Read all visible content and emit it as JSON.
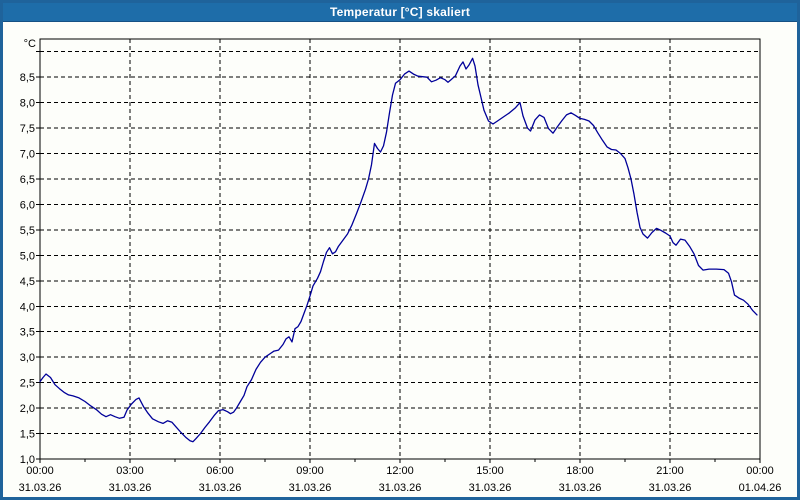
{
  "window": {
    "title": "Temperatur [°C] skaliert",
    "colors": {
      "title_bar": "#1e6da9",
      "title_text": "#ffffff",
      "frame": "#1f639b",
      "content_bg": "#fdfefa",
      "plot_border": "#000000",
      "grid": "#000000",
      "series": "#000099",
      "label": "#000000"
    }
  },
  "chart_data": {
    "type": "line",
    "title": "Temperatur [°C] skaliert",
    "unit_label": "°C",
    "legend_position": "none",
    "grid_on": true,
    "xlim_hours": [
      0,
      24
    ],
    "ylim": [
      1.0,
      9.25
    ],
    "y_grid_step": 0.5,
    "y_grid_top_line": 9.0,
    "x_grid_step_hours": 3,
    "x_minor_tick_hours": 1.5,
    "y_ticks": [
      {
        "value": 1.0,
        "label": "1,0"
      },
      {
        "value": 1.5,
        "label": "1,5"
      },
      {
        "value": 2.0,
        "label": "2,0"
      },
      {
        "value": 2.5,
        "label": "2,5"
      },
      {
        "value": 3.0,
        "label": "3,0"
      },
      {
        "value": 3.5,
        "label": "3,5"
      },
      {
        "value": 4.0,
        "label": "4,0"
      },
      {
        "value": 4.5,
        "label": "4,5"
      },
      {
        "value": 5.0,
        "label": "5,0"
      },
      {
        "value": 5.5,
        "label": "5,5"
      },
      {
        "value": 6.0,
        "label": "6,0"
      },
      {
        "value": 6.5,
        "label": "6,5"
      },
      {
        "value": 7.0,
        "label": "7,0"
      },
      {
        "value": 7.5,
        "label": "7,5"
      },
      {
        "value": 8.0,
        "label": "8,0"
      },
      {
        "value": 8.5,
        "label": "8,5"
      }
    ],
    "x_ticks": [
      {
        "hour": 0,
        "time": "00:00",
        "date": "31.03.26"
      },
      {
        "hour": 3,
        "time": "03:00",
        "date": "31.03.26"
      },
      {
        "hour": 6,
        "time": "06:00",
        "date": "31.03.26"
      },
      {
        "hour": 9,
        "time": "09:00",
        "date": "31.03.26"
      },
      {
        "hour": 12,
        "time": "12:00",
        "date": "31.03.26"
      },
      {
        "hour": 15,
        "time": "15:00",
        "date": "31.03.26"
      },
      {
        "hour": 18,
        "time": "18:00",
        "date": "31.03.26"
      },
      {
        "hour": 21,
        "time": "21:00",
        "date": "31.03.26"
      },
      {
        "hour": 24,
        "time": "00:00",
        "date": "01.04.26"
      }
    ],
    "series": [
      {
        "name": "Temperatur [°C]",
        "color": "#000099",
        "points": [
          [
            0,
            2.52
          ],
          [
            0.1,
            2.6
          ],
          [
            0.2,
            2.67
          ],
          [
            0.35,
            2.6
          ],
          [
            0.5,
            2.46
          ],
          [
            0.65,
            2.38
          ],
          [
            0.8,
            2.31
          ],
          [
            0.95,
            2.26
          ],
          [
            1.1,
            2.24
          ],
          [
            1.3,
            2.2
          ],
          [
            1.5,
            2.13
          ],
          [
            1.7,
            2.04
          ],
          [
            1.9,
            1.96
          ],
          [
            2.05,
            1.88
          ],
          [
            2.2,
            1.83
          ],
          [
            2.35,
            1.87
          ],
          [
            2.5,
            1.83
          ],
          [
            2.65,
            1.8
          ],
          [
            2.8,
            1.82
          ],
          [
            2.9,
            1.96
          ],
          [
            3.05,
            2.08
          ],
          [
            3.2,
            2.17
          ],
          [
            3.3,
            2.2
          ],
          [
            3.45,
            2.03
          ],
          [
            3.6,
            1.9
          ],
          [
            3.75,
            1.79
          ],
          [
            3.95,
            1.73
          ],
          [
            4.1,
            1.7
          ],
          [
            4.25,
            1.75
          ],
          [
            4.4,
            1.72
          ],
          [
            4.55,
            1.62
          ],
          [
            4.7,
            1.52
          ],
          [
            4.85,
            1.43
          ],
          [
            5,
            1.36
          ],
          [
            5.1,
            1.34
          ],
          [
            5.2,
            1.4
          ],
          [
            5.35,
            1.5
          ],
          [
            5.5,
            1.62
          ],
          [
            5.65,
            1.73
          ],
          [
            5.8,
            1.85
          ],
          [
            5.95,
            1.95
          ],
          [
            6.1,
            1.97
          ],
          [
            6.25,
            1.93
          ],
          [
            6.35,
            1.89
          ],
          [
            6.45,
            1.92
          ],
          [
            6.55,
            2.0
          ],
          [
            6.65,
            2.1
          ],
          [
            6.8,
            2.25
          ],
          [
            6.9,
            2.42
          ],
          [
            7.05,
            2.56
          ],
          [
            7.2,
            2.76
          ],
          [
            7.35,
            2.9
          ],
          [
            7.5,
            3.0
          ],
          [
            7.65,
            3.06
          ],
          [
            7.8,
            3.12
          ],
          [
            7.95,
            3.14
          ],
          [
            8.1,
            3.25
          ],
          [
            8.2,
            3.36
          ],
          [
            8.3,
            3.4
          ],
          [
            8.4,
            3.3
          ],
          [
            8.5,
            3.56
          ],
          [
            8.6,
            3.6
          ],
          [
            8.7,
            3.7
          ],
          [
            8.8,
            3.86
          ],
          [
            8.9,
            4.02
          ],
          [
            9,
            4.2
          ],
          [
            9.1,
            4.4
          ],
          [
            9.25,
            4.55
          ],
          [
            9.35,
            4.68
          ],
          [
            9.45,
            4.88
          ],
          [
            9.55,
            5.06
          ],
          [
            9.65,
            5.15
          ],
          [
            9.75,
            5.03
          ],
          [
            9.85,
            5.07
          ],
          [
            9.95,
            5.18
          ],
          [
            10.1,
            5.3
          ],
          [
            10.25,
            5.42
          ],
          [
            10.4,
            5.6
          ],
          [
            10.55,
            5.82
          ],
          [
            10.7,
            6.05
          ],
          [
            10.85,
            6.3
          ],
          [
            10.95,
            6.5
          ],
          [
            11.05,
            6.78
          ],
          [
            11.15,
            7.2
          ],
          [
            11.25,
            7.1
          ],
          [
            11.35,
            7.03
          ],
          [
            11.45,
            7.15
          ],
          [
            11.55,
            7.42
          ],
          [
            11.65,
            7.8
          ],
          [
            11.75,
            8.15
          ],
          [
            11.85,
            8.38
          ],
          [
            12,
            8.45
          ],
          [
            12.15,
            8.56
          ],
          [
            12.3,
            8.62
          ],
          [
            12.45,
            8.56
          ],
          [
            12.6,
            8.52
          ],
          [
            12.75,
            8.51
          ],
          [
            12.9,
            8.5
          ],
          [
            13.05,
            8.41
          ],
          [
            13.2,
            8.44
          ],
          [
            13.35,
            8.49
          ],
          [
            13.5,
            8.45
          ],
          [
            13.6,
            8.4
          ],
          [
            13.7,
            8.45
          ],
          [
            13.85,
            8.53
          ],
          [
            14,
            8.72
          ],
          [
            14.1,
            8.8
          ],
          [
            14.2,
            8.66
          ],
          [
            14.3,
            8.74
          ],
          [
            14.42,
            8.87
          ],
          [
            14.5,
            8.72
          ],
          [
            14.6,
            8.35
          ],
          [
            14.7,
            8.1
          ],
          [
            14.8,
            7.85
          ],
          [
            14.95,
            7.64
          ],
          [
            15.1,
            7.58
          ],
          [
            15.25,
            7.64
          ],
          [
            15.45,
            7.72
          ],
          [
            15.65,
            7.8
          ],
          [
            15.85,
            7.9
          ],
          [
            16,
            8.0
          ],
          [
            16.1,
            7.74
          ],
          [
            16.25,
            7.5
          ],
          [
            16.35,
            7.44
          ],
          [
            16.5,
            7.66
          ],
          [
            16.65,
            7.76
          ],
          [
            16.8,
            7.71
          ],
          [
            16.95,
            7.49
          ],
          [
            17.1,
            7.4
          ],
          [
            17.25,
            7.53
          ],
          [
            17.4,
            7.65
          ],
          [
            17.55,
            7.76
          ],
          [
            17.7,
            7.8
          ],
          [
            17.85,
            7.75
          ],
          [
            18,
            7.69
          ],
          [
            18.15,
            7.67
          ],
          [
            18.3,
            7.64
          ],
          [
            18.45,
            7.55
          ],
          [
            18.6,
            7.4
          ],
          [
            18.75,
            7.26
          ],
          [
            18.9,
            7.13
          ],
          [
            19.05,
            7.08
          ],
          [
            19.2,
            7.07
          ],
          [
            19.35,
            7.0
          ],
          [
            19.5,
            6.9
          ],
          [
            19.6,
            6.72
          ],
          [
            19.7,
            6.5
          ],
          [
            19.8,
            6.2
          ],
          [
            19.9,
            5.85
          ],
          [
            20,
            5.55
          ],
          [
            20.1,
            5.42
          ],
          [
            20.25,
            5.34
          ],
          [
            20.4,
            5.45
          ],
          [
            20.55,
            5.53
          ],
          [
            20.7,
            5.49
          ],
          [
            20.85,
            5.44
          ],
          [
            21,
            5.38
          ],
          [
            21.1,
            5.25
          ],
          [
            21.2,
            5.2
          ],
          [
            21.35,
            5.32
          ],
          [
            21.5,
            5.3
          ],
          [
            21.65,
            5.18
          ],
          [
            21.8,
            5.03
          ],
          [
            21.95,
            4.8
          ],
          [
            22.1,
            4.71
          ],
          [
            22.3,
            4.73
          ],
          [
            22.55,
            4.73
          ],
          [
            22.8,
            4.72
          ],
          [
            22.95,
            4.65
          ],
          [
            23.05,
            4.48
          ],
          [
            23.15,
            4.22
          ],
          [
            23.3,
            4.16
          ],
          [
            23.45,
            4.12
          ],
          [
            23.6,
            4.04
          ],
          [
            23.75,
            3.92
          ],
          [
            23.9,
            3.83
          ]
        ]
      }
    ]
  }
}
